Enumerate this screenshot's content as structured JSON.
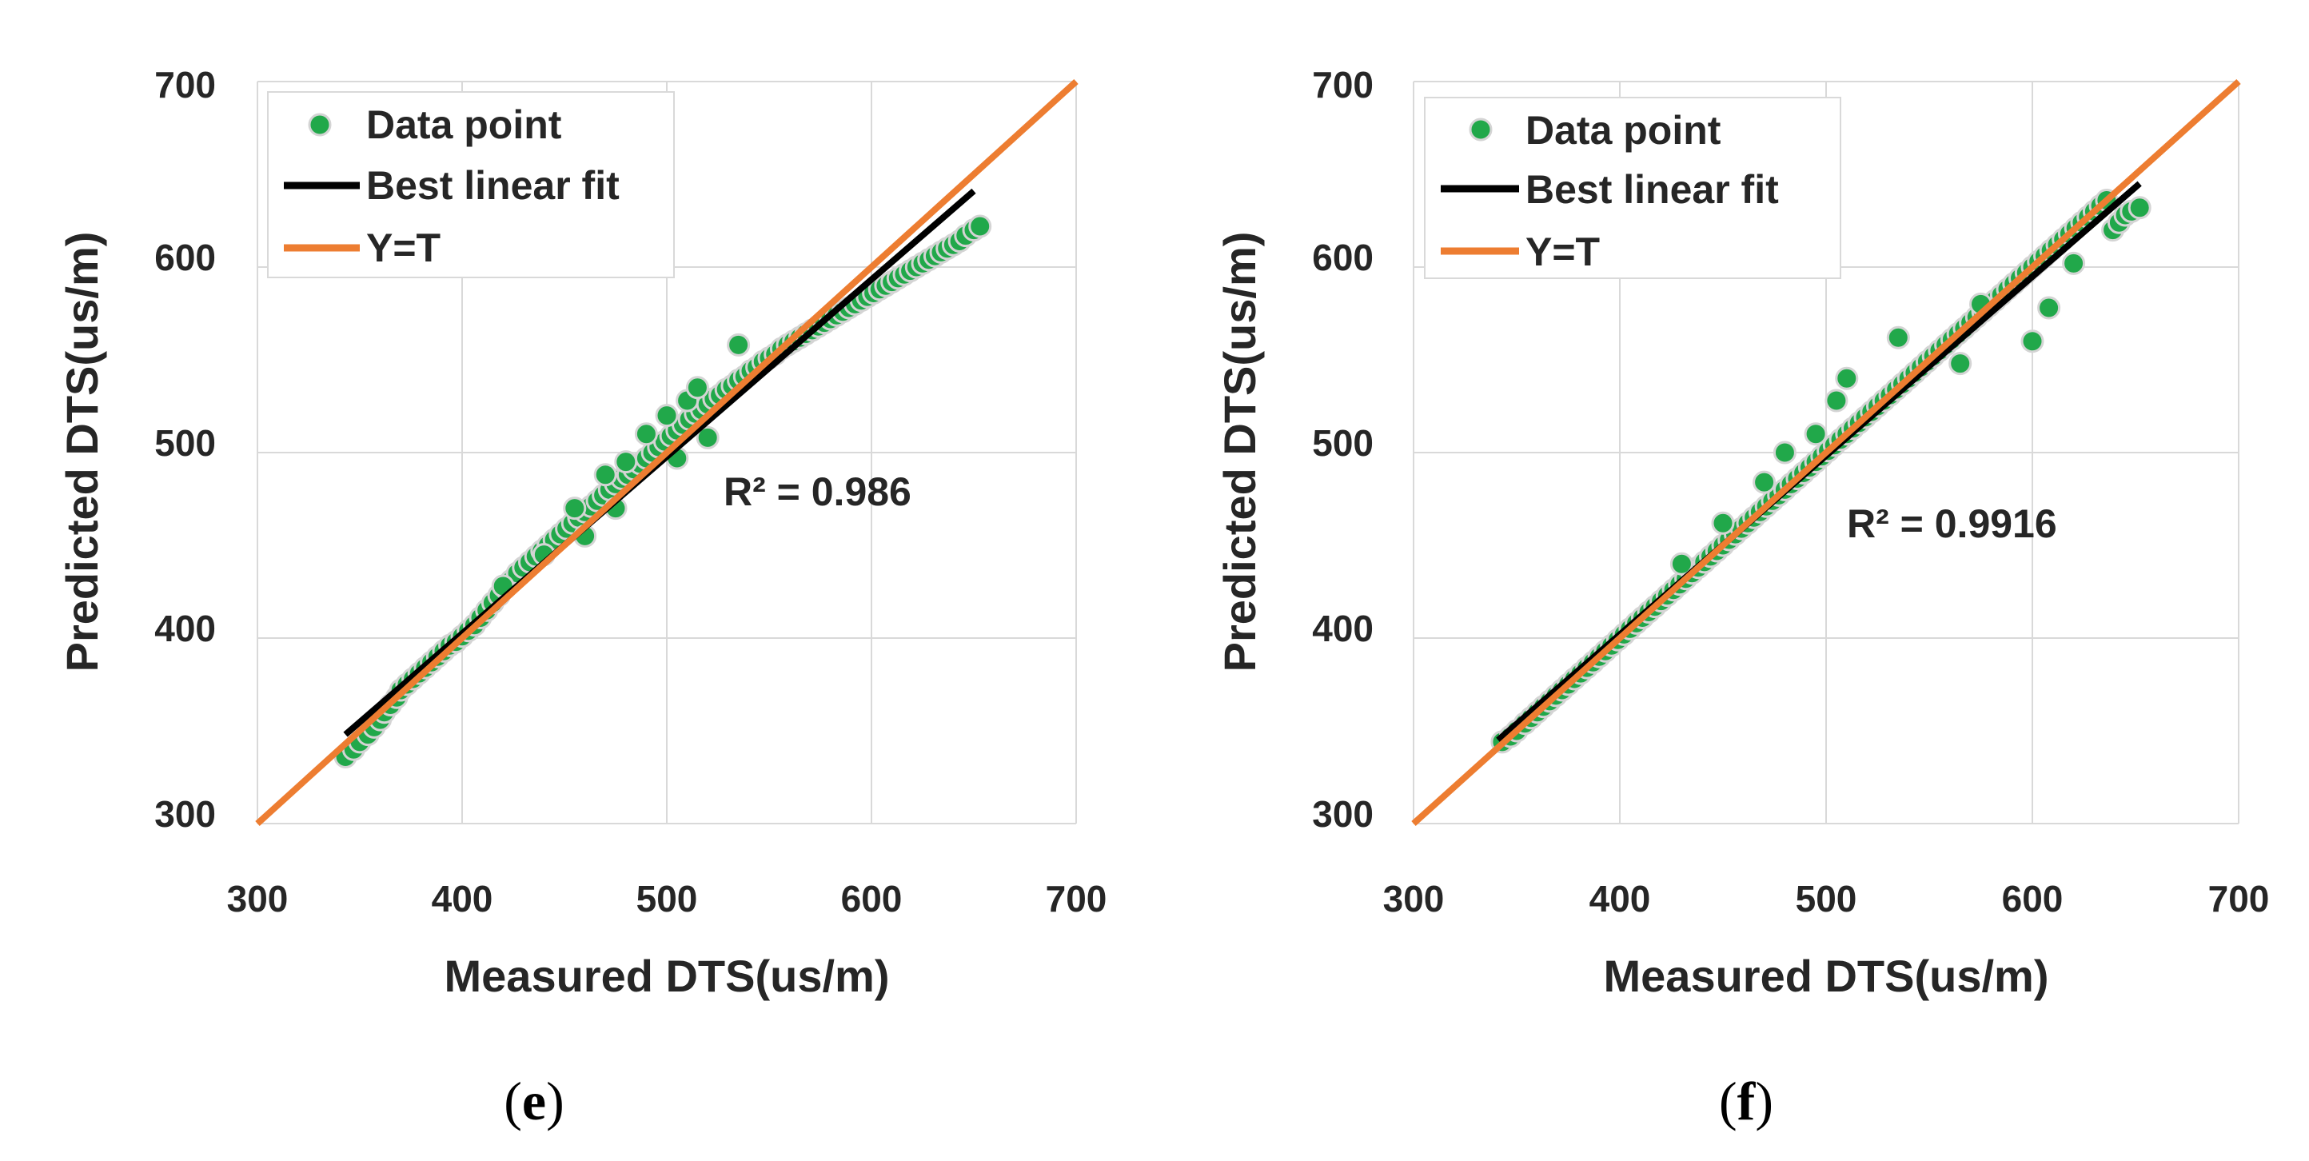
{
  "colors": {
    "data_point": "#21a84a",
    "data_point_edge": "#d4d4d4",
    "best_fit": "#000000",
    "identity": "#ed7d31",
    "grid": "#d9d9d9",
    "text": "#262626"
  },
  "chart_data": [
    {
      "type": "scatter",
      "panel_label": "e",
      "xlabel": "Measured DTS(us/m)",
      "ylabel": "Predicted DTS(us/m)",
      "xlim": [
        300,
        700
      ],
      "ylim": [
        300,
        700
      ],
      "xticks": [
        "300",
        "400",
        "500",
        "600",
        "700"
      ],
      "yticks": [
        "300",
        "400",
        "500",
        "600",
        "700"
      ],
      "grid": true,
      "legend_position": "top-left",
      "legend": [
        "Data point",
        "Best linear fit",
        "Y=T"
      ],
      "annotation": "R² = 0.986",
      "best_fit": {
        "x": [
          343,
          650
        ],
        "y": [
          348,
          641
        ]
      },
      "identity_line": {
        "x": [
          300,
          700
        ],
        "y": [
          300,
          700
        ]
      },
      "points": {
        "x": [
          343,
          347,
          350,
          354,
          357,
          360,
          362,
          365,
          368,
          370,
          373,
          376,
          379,
          382,
          385,
          388,
          391,
          394,
          397,
          400,
          403,
          406,
          409,
          412,
          415,
          418,
          421,
          424,
          427,
          430,
          433,
          436,
          439,
          442,
          445,
          448,
          451,
          454,
          457,
          460,
          463,
          466,
          469,
          472,
          475,
          478,
          481,
          484,
          487,
          490,
          493,
          496,
          499,
          502,
          505,
          508,
          511,
          514,
          517,
          520,
          523,
          526,
          529,
          532,
          535,
          538,
          541,
          544,
          547,
          550,
          553,
          556,
          559,
          562,
          565,
          568,
          571,
          574,
          577,
          580,
          583,
          586,
          589,
          592,
          595,
          598,
          601,
          604,
          607,
          610,
          613,
          616,
          619,
          622,
          625,
          628,
          631,
          634,
          637,
          640,
          643,
          646,
          650,
          653,
          420,
          440,
          455,
          470,
          480,
          490,
          500,
          510,
          515,
          535,
          460,
          475,
          505,
          520
        ],
        "y": [
          336,
          340,
          344,
          348,
          352,
          356,
          360,
          364,
          368,
          372,
          375,
          378,
          381,
          384,
          387,
          390,
          393,
          396,
          398,
          401,
          404,
          407,
          411,
          415,
          419,
          423,
          427,
          431,
          435,
          438,
          441,
          444,
          447,
          450,
          453,
          456,
          459,
          462,
          465,
          468,
          471,
          474,
          477,
          480,
          483,
          486,
          488,
          491,
          494,
          497,
          500,
          503,
          506,
          509,
          512,
          515,
          518,
          521,
          523,
          526,
          529,
          531,
          534,
          536,
          539,
          541,
          544,
          546,
          549,
          551,
          553,
          556,
          558,
          560,
          562,
          564,
          566,
          568,
          570,
          572,
          574,
          576,
          578,
          580,
          582,
          584,
          586,
          588,
          590,
          592,
          594,
          596,
          598,
          600,
          602,
          604,
          606,
          608,
          610,
          612,
          614,
          617,
          620,
          622,
          428,
          445,
          470,
          488,
          495,
          510,
          520,
          528,
          535,
          558,
          455,
          470,
          497,
          508
        ]
      }
    },
    {
      "type": "scatter",
      "panel_label": "f",
      "xlabel": "Measured DTS(us/m)",
      "ylabel": "Predicted DTS(us/m)",
      "xlim": [
        300,
        700
      ],
      "ylim": [
        300,
        700
      ],
      "xticks": [
        "300",
        "400",
        "500",
        "600",
        "700"
      ],
      "yticks": [
        "300",
        "400",
        "500",
        "600",
        "700"
      ],
      "grid": true,
      "legend_position": "top-left",
      "legend": [
        "Data point",
        "Best linear fit",
        "Y=T"
      ],
      "annotation": "R² = 0.9916",
      "best_fit": {
        "x": [
          341,
          652
        ],
        "y": [
          345,
          645
        ]
      },
      "identity_line": {
        "x": [
          300,
          700
        ],
        "y": [
          300,
          700
        ]
      },
      "points": {
        "x": [
          343,
          347,
          350,
          354,
          357,
          360,
          363,
          366,
          369,
          372,
          375,
          378,
          381,
          384,
          387,
          390,
          393,
          396,
          399,
          402,
          405,
          408,
          411,
          414,
          417,
          420,
          423,
          426,
          429,
          432,
          435,
          438,
          441,
          444,
          447,
          450,
          453,
          456,
          459,
          462,
          465,
          468,
          471,
          474,
          477,
          480,
          483,
          486,
          489,
          492,
          495,
          498,
          501,
          504,
          507,
          510,
          513,
          516,
          519,
          522,
          525,
          528,
          531,
          534,
          537,
          540,
          543,
          546,
          549,
          552,
          555,
          558,
          561,
          564,
          567,
          570,
          573,
          576,
          579,
          582,
          585,
          588,
          591,
          594,
          597,
          600,
          603,
          606,
          609,
          612,
          615,
          618,
          621,
          624,
          627,
          630,
          633,
          636,
          639,
          642,
          645,
          648,
          652,
          535,
          510,
          600,
          608,
          620,
          575,
          565,
          480,
          495,
          505,
          470,
          430,
          450
        ],
        "y": [
          344,
          347,
          350,
          354,
          357,
          360,
          363,
          366,
          369,
          372,
          375,
          378,
          381,
          384,
          387,
          390,
          393,
          396,
          399,
          402,
          405,
          408,
          411,
          414,
          417,
          420,
          423,
          426,
          429,
          432,
          435,
          438,
          441,
          444,
          447,
          450,
          453,
          456,
          459,
          462,
          465,
          468,
          471,
          474,
          477,
          480,
          483,
          486,
          489,
          492,
          495,
          498,
          501,
          504,
          507,
          510,
          513,
          516,
          519,
          522,
          525,
          528,
          531,
          534,
          537,
          540,
          543,
          546,
          549,
          552,
          555,
          558,
          561,
          564,
          567,
          570,
          573,
          576,
          579,
          582,
          585,
          588,
          591,
          594,
          597,
          600,
          603,
          606,
          609,
          612,
          615,
          618,
          621,
          624,
          627,
          630,
          633,
          636,
          620,
          624,
          628,
          630,
          632,
          562,
          540,
          560,
          578,
          602,
          580,
          548,
          500,
          510,
          528,
          484,
          440,
          462
        ]
      }
    }
  ]
}
